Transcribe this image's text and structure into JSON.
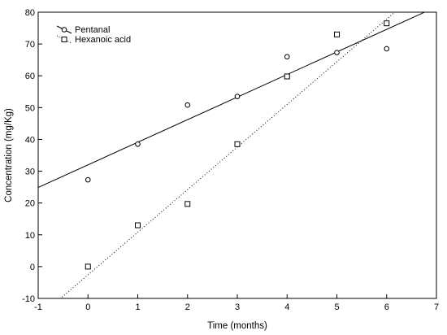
{
  "chart_data": {
    "type": "scatter",
    "xlabel": "Time (months)",
    "ylabel": "Concentration (mg/Kg)",
    "xlim": [
      -1,
      7
    ],
    "ylim": [
      -10,
      80
    ],
    "x_ticks": [
      -1,
      0,
      1,
      2,
      3,
      4,
      5,
      6,
      7
    ],
    "y_ticks": [
      -10,
      0,
      10,
      20,
      30,
      40,
      50,
      60,
      70,
      80
    ],
    "grid": false,
    "legend_position": "top-left",
    "series": [
      {
        "name": "Pentanal",
        "marker": "circle",
        "line_style": "solid",
        "x": [
          0,
          1,
          2,
          3,
          4,
          5,
          6
        ],
        "y": [
          27.3,
          38.5,
          50.8,
          53.5,
          66.0,
          67.3,
          68.5
        ],
        "fit": {
          "slope": 7.1,
          "intercept": 32.0
        }
      },
      {
        "name": "Hexanoic acid",
        "marker": "square",
        "line_style": "dotted",
        "x": [
          0,
          1,
          2,
          3,
          4,
          5,
          6
        ],
        "y": [
          0.0,
          13.0,
          19.7,
          38.5,
          59.8,
          73.0,
          76.5
        ],
        "fit": {
          "slope": 13.4,
          "intercept": -2.6
        }
      }
    ],
    "colors": {
      "marks": "#000000",
      "frame": "#000000"
    }
  }
}
